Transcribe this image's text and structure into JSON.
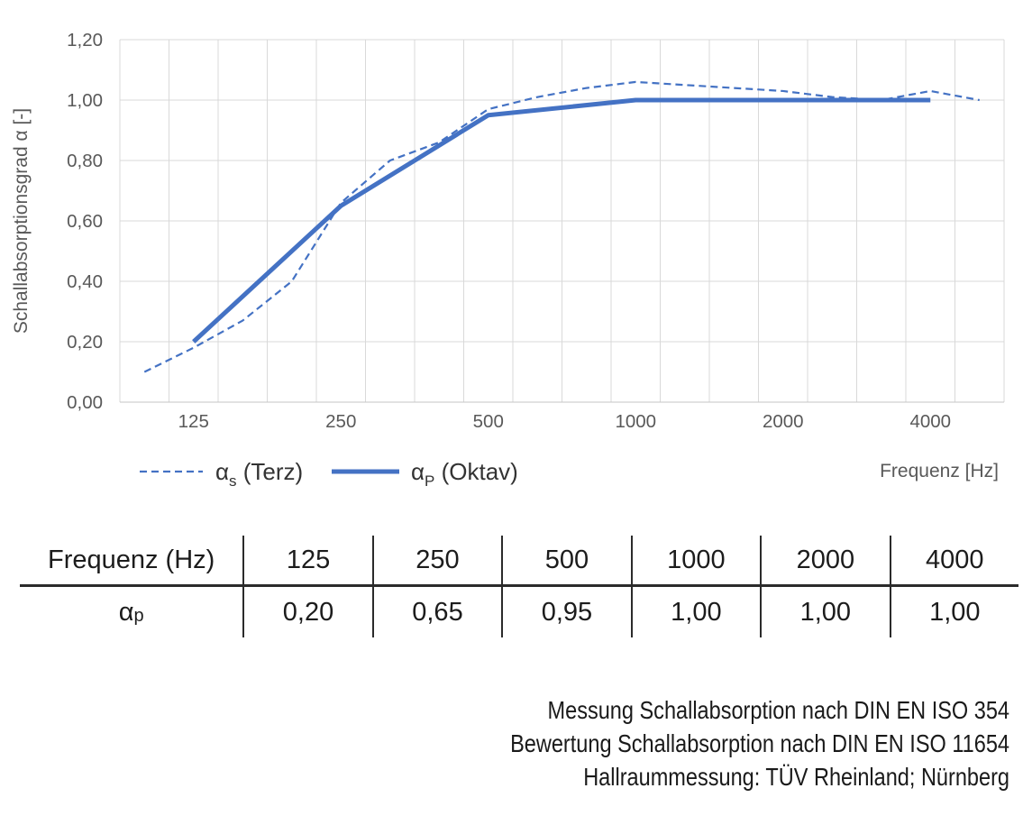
{
  "colors": {
    "series_blue": "#4472C4",
    "grid": "#D9D9D9",
    "axis_line": "#C6C6C6",
    "axis_text": "#595959",
    "legend_text": "#333333",
    "table_text": "#1c1c1c",
    "table_rule": "#2b2b2b"
  },
  "chart_data": {
    "type": "line",
    "x_axis_scale": "third-octave bands (log)",
    "x_categories": [
      "100",
      "125",
      "160",
      "200",
      "250",
      "315",
      "400",
      "500",
      "630",
      "800",
      "1000",
      "1250",
      "1600",
      "2000",
      "2500",
      "3150",
      "4000",
      "5000"
    ],
    "x_tick_labels": [
      "125",
      "250",
      "500",
      "1000",
      "2000",
      "4000"
    ],
    "xlabel": "Frequenz [Hz]",
    "ylabel": "Schallabsorptionsgrad α [-]",
    "ylim": [
      0,
      1.2
    ],
    "y_tick_values": [
      0,
      0.2,
      0.4,
      0.6,
      0.8,
      1.0,
      1.2
    ],
    "y_tick_labels": [
      "0,00",
      "0,20",
      "0,40",
      "0,60",
      "0,80",
      "1,00",
      "1,20"
    ],
    "grid": true,
    "legend_position": "bottom-left",
    "series": [
      {
        "name": "αs (Terz)",
        "symbol": "α",
        "sub": "s",
        "rest": " (Terz)",
        "style": "dashed",
        "x": [
          "100",
          "125",
          "160",
          "200",
          "250",
          "315",
          "400",
          "500",
          "630",
          "800",
          "1000",
          "1250",
          "1600",
          "2000",
          "2500",
          "3150",
          "4000",
          "5000"
        ],
        "values": [
          0.1,
          0.18,
          0.27,
          0.4,
          0.66,
          0.8,
          0.86,
          0.97,
          1.01,
          1.04,
          1.06,
          1.05,
          1.04,
          1.03,
          1.01,
          1.0,
          1.03,
          1.0
        ]
      },
      {
        "name": "αP (Oktav)",
        "symbol": "α",
        "sub": "P",
        "rest": " (Oktav)",
        "style": "solid",
        "x": [
          "125",
          "250",
          "500",
          "1000",
          "2000",
          "4000"
        ],
        "values": [
          0.2,
          0.65,
          0.95,
          1.0,
          1.0,
          1.0
        ]
      }
    ]
  },
  "table": {
    "header": [
      "Frequenz (Hz)",
      "125",
      "250",
      "500",
      "1000",
      "2000",
      "4000"
    ],
    "row_label": {
      "symbol": "α",
      "sub": "p"
    },
    "row_values": [
      "0,20",
      "0,65",
      "0,95",
      "1,00",
      "1,00",
      "1,00"
    ]
  },
  "footer": {
    "lines": [
      "Messung Schallabsorption nach DIN EN ISO 354",
      "Bewertung Schallabsorption nach DIN EN ISO 11654",
      "Hallraummessung: TÜV Rheinland; Nürnberg"
    ]
  }
}
